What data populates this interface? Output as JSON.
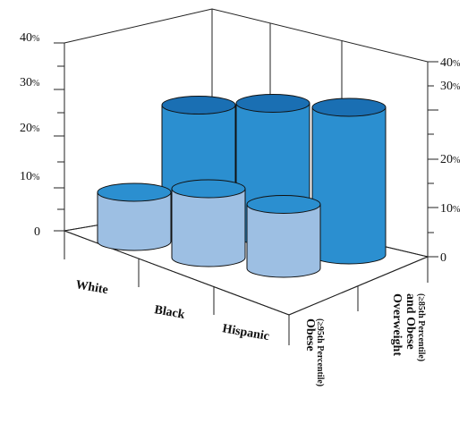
{
  "chart_data": {
    "type": "bar",
    "style": "3d-cylinder",
    "categories": [
      "White",
      "Black",
      "Hispanic"
    ],
    "series": [
      {
        "name": "Obese",
        "sub": "(≥95th Percentile)",
        "values": [
          10,
          14,
          13
        ],
        "color": "#9dbfe3",
        "top_color": "#2b8fd0"
      },
      {
        "name": "Overweight\nand Obese",
        "sub": "(≥85th Percentile)",
        "values": [
          23,
          27,
          30
        ],
        "color": "#2b8fd0",
        "top_color": "#1a6fb3"
      }
    ],
    "ylim": [
      0,
      40
    ],
    "left_ticks": [
      "0",
      "10",
      "20",
      "30",
      "40"
    ],
    "left_ticks_pct": [
      "",
      "%",
      "%",
      "%",
      "%"
    ],
    "right_ticks": [
      "0",
      "10",
      "20",
      "30",
      "40"
    ],
    "right_ticks_pct": [
      "",
      "%",
      "%",
      "%",
      "%"
    ],
    "grid": false,
    "legend": "none",
    "title": "",
    "xlabel": "",
    "ylabel": ""
  }
}
